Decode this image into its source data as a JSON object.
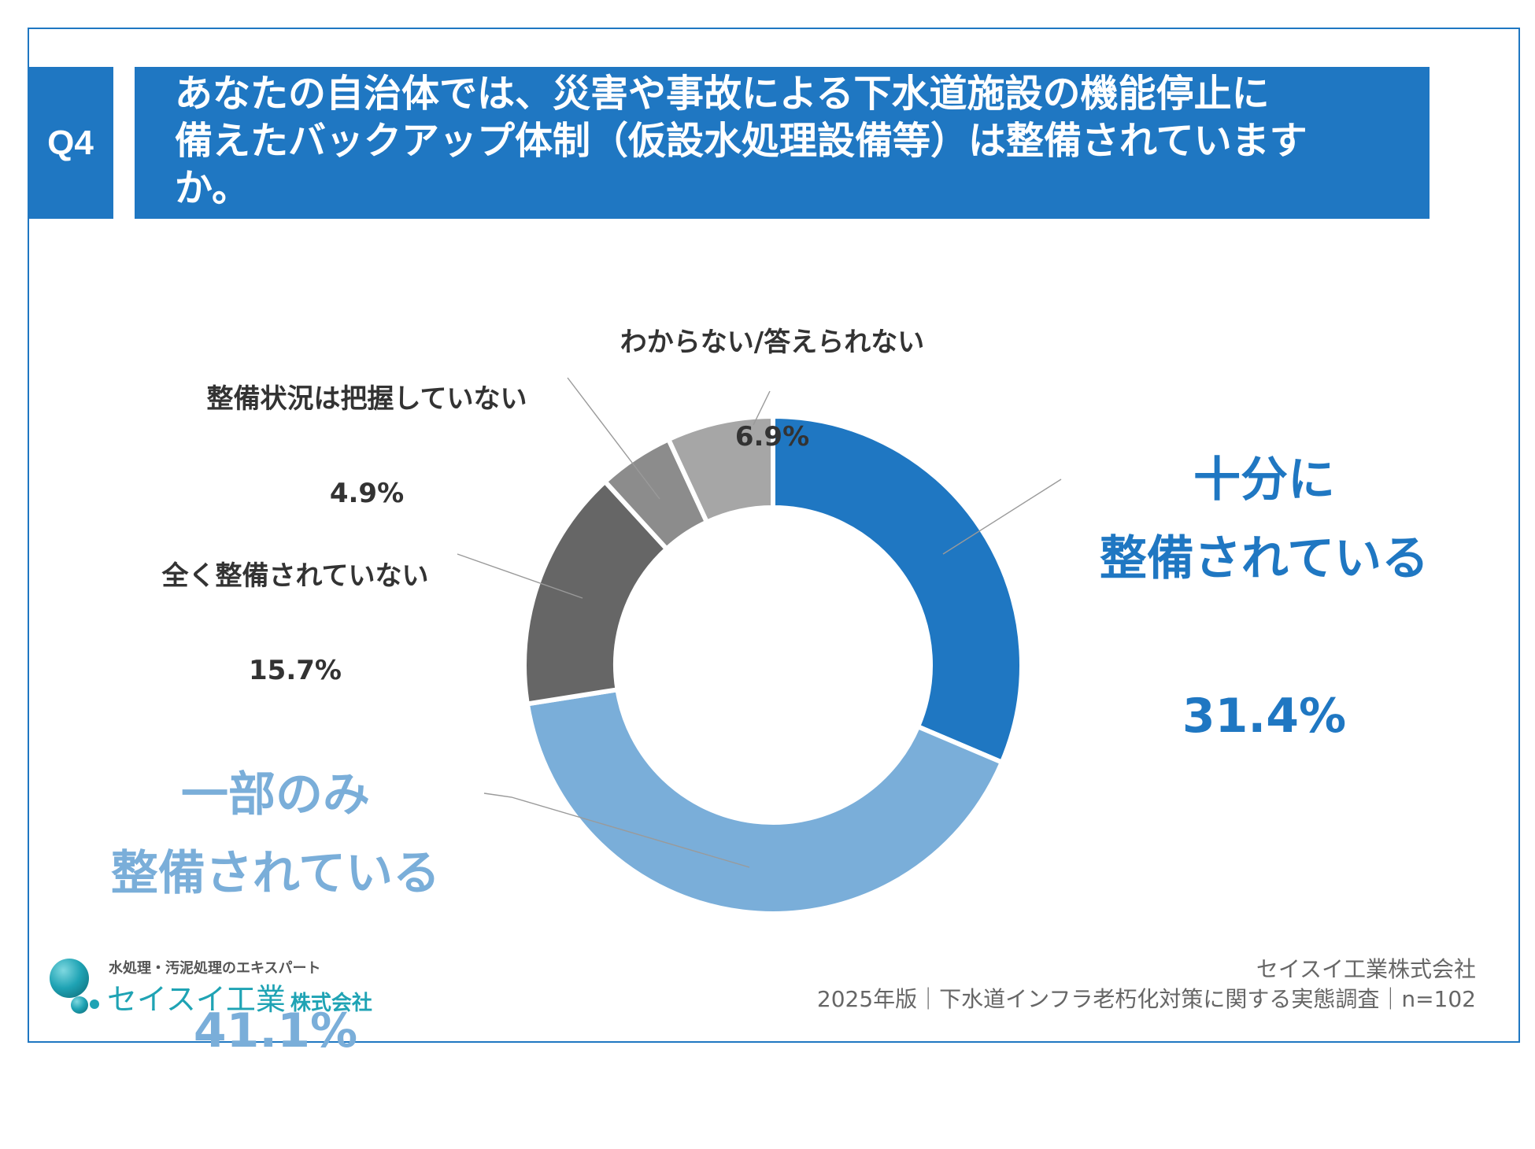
{
  "header": {
    "badge": "Q4",
    "question_lines": [
      "あなたの自治体では、災害や事故による下水道施設の機能停止に",
      "備えたバックアップ体制（仮設水処理設備等）は整備されています",
      "か。"
    ]
  },
  "chart_data": {
    "type": "pie",
    "donut": true,
    "categories": [
      "十分に\n整備されている",
      "一部のみ\n整備されている",
      "全く整備されていない",
      "整備状況は把握していない",
      "わからない/答えられない"
    ],
    "values": [
      31.4,
      41.1,
      15.7,
      4.9,
      6.9
    ],
    "data_labels": [
      "31.4%",
      "41.1%",
      "15.7%",
      "4.9%",
      "6.9%"
    ],
    "colors": [
      "#1f77c2",
      "#7aaed9",
      "#666666",
      "#8c8c8c",
      "#a6a6a6"
    ],
    "legend": "none"
  },
  "logo": {
    "tagline": "水処理・汚泥処理のエキスパート",
    "brand": "セイスイ工業",
    "suffix": "株式会社",
    "brand_color": "#1fa3b4"
  },
  "footer": {
    "company": "セイスイ工業株式会社",
    "survey": "2025年版｜下水道インフラ老朽化対策に関する実態調査｜n=102"
  },
  "theme": {
    "accent": "#1f77c2",
    "text": "#333333",
    "muted": "#666666"
  }
}
